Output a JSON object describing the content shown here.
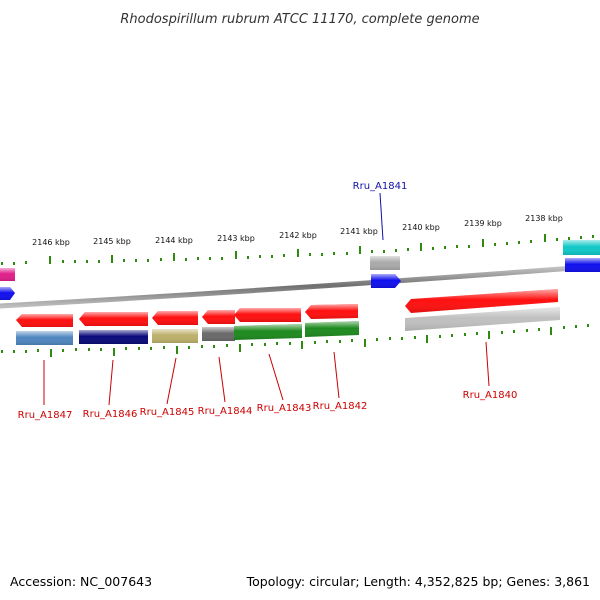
{
  "title": "Rhodospirillum rubrum ATCC 11170, complete genome",
  "footer": {
    "accession": "Accession: NC_007643",
    "topology": "Topology: circular; Length: 4,352,825 bp; Genes: 3,861"
  },
  "colors": {
    "tick": "#2e8b10",
    "backbone": "#808080",
    "cds": "#ff1010",
    "label_red": "#cc0000",
    "label_blue": "#1010aa"
  },
  "ruler_labels": [
    "2146 kbp",
    "2145 kbp",
    "2144 kbp",
    "2143 kbp",
    "2142 kbp",
    "2141 kbp",
    "2140 kbp",
    "2139 kbp",
    "2138 kbp"
  ],
  "genes": [
    {
      "id": "Rru_A1847",
      "strand": "-",
      "color": "#4f86bf"
    },
    {
      "id": "Rru_A1846",
      "strand": "-",
      "color": "#0a0a7a"
    },
    {
      "id": "Rru_A1845",
      "strand": "-",
      "color": "#bdb06a"
    },
    {
      "id": "Rru_A1844",
      "strand": "-",
      "color": "#6a6a6a"
    },
    {
      "id": "Rru_A1843",
      "strand": "-",
      "color": "#1e8a1e"
    },
    {
      "id": "Rru_A1842",
      "strand": "-",
      "color": "#1e8a1e"
    },
    {
      "id": "Rru_A1841",
      "strand": "+",
      "color": "#aaaaaa"
    },
    {
      "id": "Rru_A1840",
      "strand": "-",
      "color": "#c0c0c0"
    }
  ]
}
